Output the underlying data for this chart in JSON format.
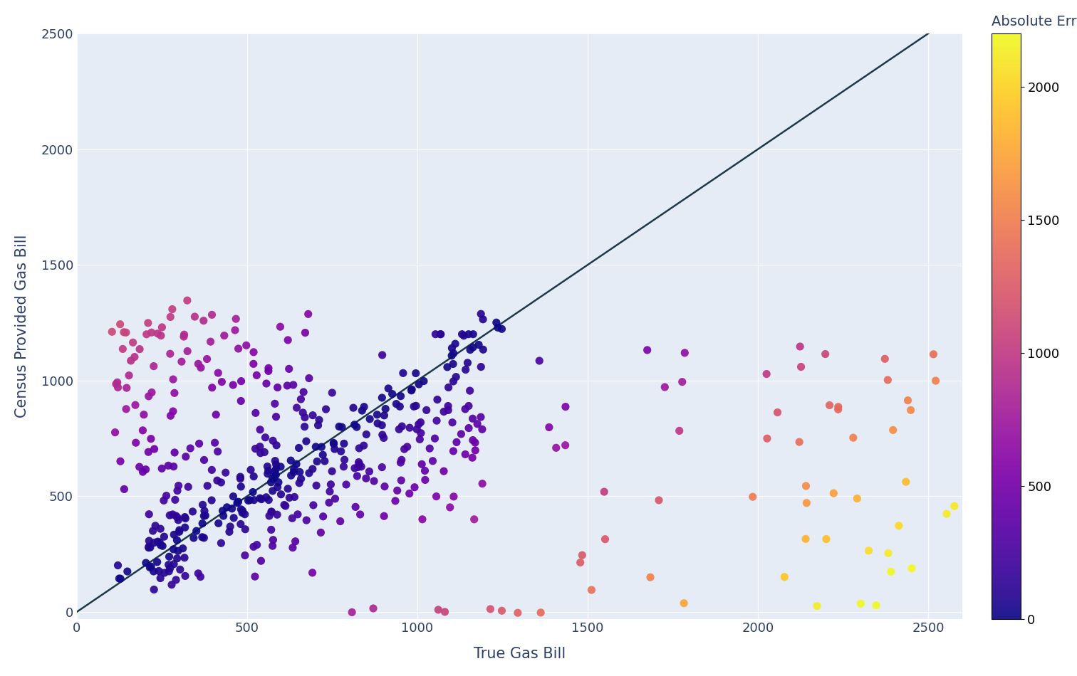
{
  "title": "",
  "xlabel": "True Gas Bill",
  "ylabel": "Census Provided Gas Bill",
  "colorbar_label": "Absolute Error",
  "xlim": [
    0,
    2600
  ],
  "ylim": [
    -30,
    2500
  ],
  "xticks": [
    0,
    500,
    1000,
    1500,
    2000,
    2500
  ],
  "yticks": [
    0,
    500,
    1000,
    1500,
    2000,
    2500
  ],
  "line_color": "#1e3a4a",
  "plot_background_color": "#e6ecf5",
  "fig_background": "#ffffff",
  "colormap": "plasma",
  "point_size": 65,
  "point_alpha": 0.92,
  "vmin": 0,
  "vmax": 2200,
  "seed": 42
}
